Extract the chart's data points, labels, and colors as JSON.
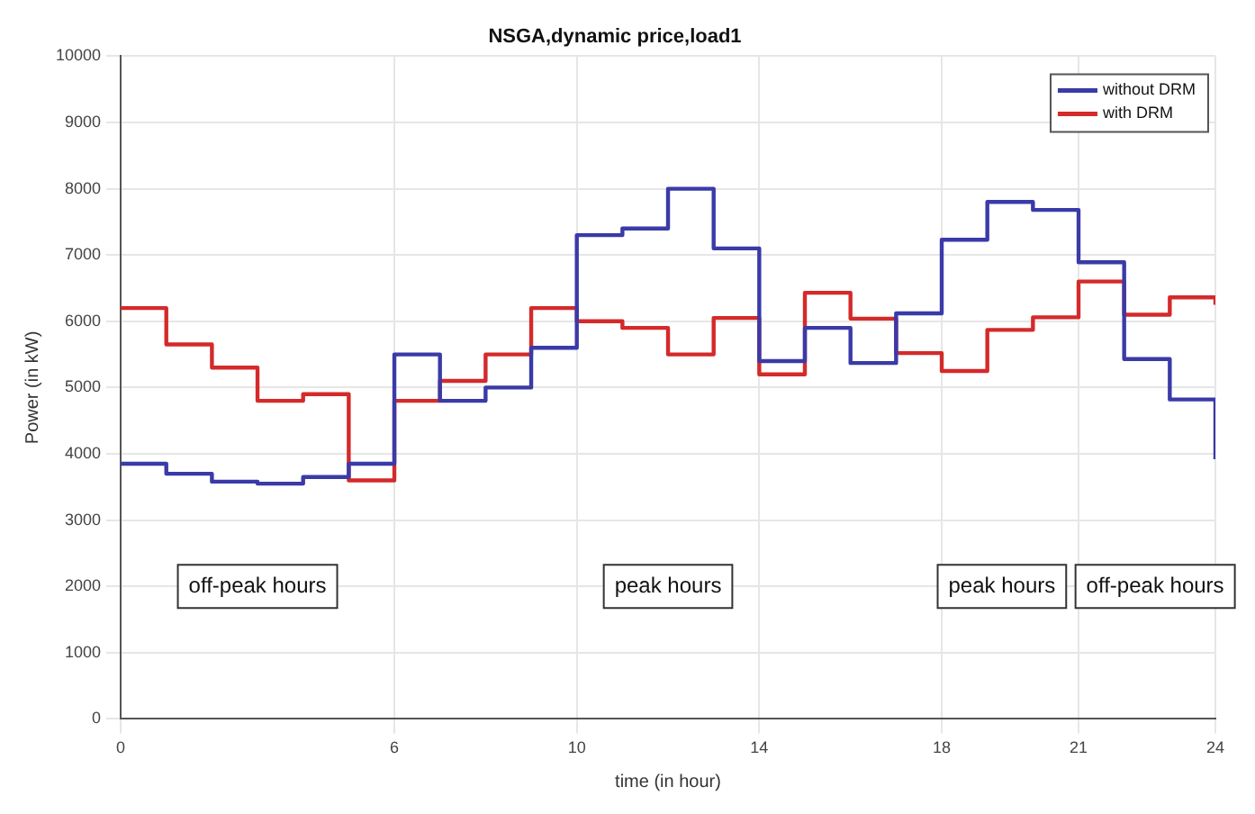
{
  "chart_data": {
    "type": "step",
    "title": "NSGA,dynamic price,load1",
    "xlabel": "time (in hour)",
    "ylabel": "Power (in kW)",
    "x": [
      0,
      1,
      2,
      3,
      4,
      5,
      6,
      7,
      8,
      9,
      10,
      11,
      12,
      13,
      14,
      15,
      16,
      17,
      18,
      19,
      20,
      21,
      22,
      23,
      24
    ],
    "series": [
      {
        "name": "without DRM",
        "color": "#3a3aa8",
        "values": [
          3850,
          3700,
          3580,
          3550,
          3650,
          3850,
          5500,
          4800,
          5000,
          5600,
          7300,
          7400,
          8000,
          7100,
          5400,
          5900,
          5370,
          6120,
          7230,
          7800,
          7680,
          6890,
          5430,
          4820,
          3920
        ]
      },
      {
        "name": "with DRM",
        "color": "#d42a2a",
        "values": [
          6200,
          5650,
          5300,
          4800,
          4900,
          3600,
          4800,
          5100,
          5500,
          6200,
          6000,
          5900,
          5500,
          6050,
          5200,
          6430,
          6040,
          5520,
          5250,
          5870,
          6060,
          6600,
          6100,
          6360,
          6250
        ]
      }
    ],
    "xlim": [
      0,
      24
    ],
    "xticks": [
      0,
      6,
      10,
      14,
      18,
      21,
      24
    ],
    "ylim": [
      0,
      10000
    ],
    "yticks": [
      0,
      1000,
      2000,
      3000,
      4000,
      5000,
      6000,
      7000,
      8000,
      9000,
      10000
    ],
    "grid": true,
    "legend": "top right",
    "annotations": [
      "off-peak hours",
      "peak hours",
      "peak hours",
      "off-peak hours"
    ]
  }
}
